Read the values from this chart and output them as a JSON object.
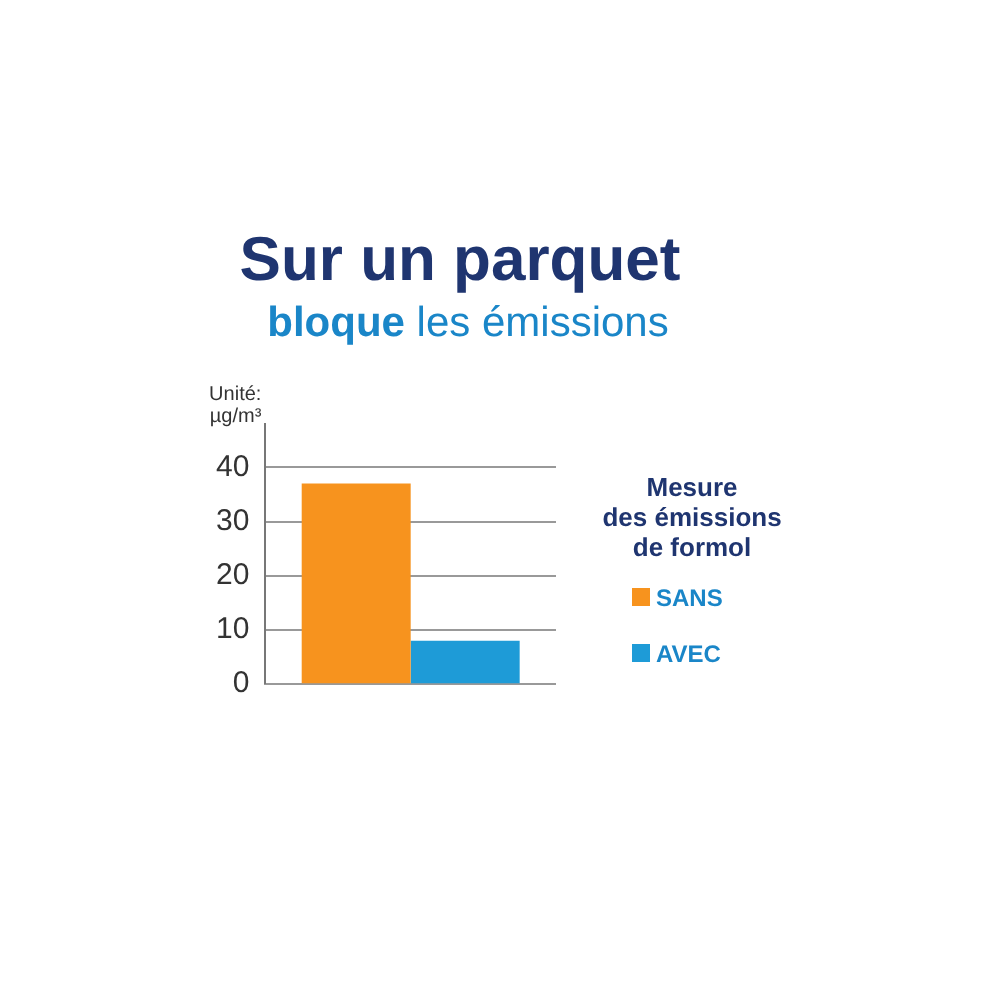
{
  "chart_data": {
    "type": "bar",
    "title": "Sur un parquet",
    "subtitle": "bloque les émissions",
    "ylabel": "Unité:\nµg/m³",
    "legend_title": "Mesure\ndes émissions\nde formol",
    "categories": [
      null
    ],
    "series": [
      {
        "name": "SANS",
        "color": "#f7931e",
        "values": [
          37
        ]
      },
      {
        "name": "AVEC",
        "color": "#1e9bd7",
        "values": [
          8
        ]
      }
    ],
    "ylim": [
      0,
      48
    ],
    "yticks": [
      0,
      10,
      20,
      30,
      40
    ],
    "grid": "y",
    "legend": "right",
    "tick_labels": "y"
  }
}
